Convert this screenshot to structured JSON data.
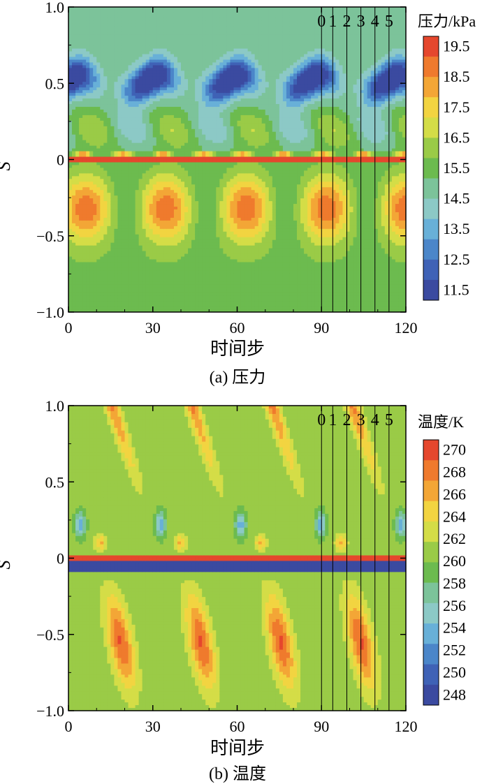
{
  "chart_data": [
    {
      "type": "heatmap",
      "caption": "(a) 压力",
      "xlabel": "时间步",
      "ylabel": "S",
      "xlim": [
        0,
        120
      ],
      "ylim": [
        -1.0,
        1.0
      ],
      "x_ticks": [
        "0",
        "30",
        "60",
        "90",
        "120"
      ],
      "x_tick_values": [
        0,
        30,
        60,
        90,
        120
      ],
      "y_ticks": [
        "1.0",
        "0.5",
        "0",
        "−0.5",
        "−1.0"
      ],
      "y_tick_values": [
        1.0,
        0.5,
        0,
        -0.5,
        -1.0
      ],
      "vertical_lines": [
        {
          "label": "0",
          "x": 90
        },
        {
          "label": "1",
          "x": 94
        },
        {
          "label": "2",
          "x": 99
        },
        {
          "label": "3",
          "x": 104
        },
        {
          "label": "4",
          "x": 109
        },
        {
          "label": "5",
          "x": 114
        }
      ],
      "colorbar": {
        "title": "压力/kPa",
        "levels": [
          "19.5",
          "18.5",
          "17.5",
          "16.5",
          "15.5",
          "14.5",
          "13.5",
          "12.5",
          "11.5"
        ],
        "min": 11.5,
        "max": 19.5,
        "colors": [
          "#3b4aa0",
          "#3f62b6",
          "#4b86c9",
          "#68b0d8",
          "#8cc9c6",
          "#7cc39a",
          "#6cbb4f",
          "#9acb47",
          "#d4dd47",
          "#f2d441",
          "#f3a636",
          "#ef7a2d",
          "#e5472d"
        ]
      },
      "field": {
        "period": 28.5,
        "phase": 0,
        "baseline": 15.3,
        "upper_cell": {
          "center_s": 0.5,
          "amplitude": -4.5
        },
        "lower_cell": {
          "center_s": -0.32,
          "amplitude": 3.3
        },
        "interface": {
          "s": 0,
          "value": 19.5
        }
      }
    },
    {
      "type": "heatmap",
      "caption": "(b) 温度",
      "xlabel": "时间步",
      "ylabel": "S",
      "xlim": [
        0,
        120
      ],
      "ylim": [
        -1.0,
        1.0
      ],
      "x_ticks": [
        "0",
        "30",
        "60",
        "90",
        "120"
      ],
      "x_tick_values": [
        0,
        30,
        60,
        90,
        120
      ],
      "y_ticks": [
        "1.0",
        "0.5",
        "0",
        "−0.5",
        "−1.0"
      ],
      "y_tick_values": [
        1.0,
        0.5,
        0,
        -0.5,
        -1.0
      ],
      "vertical_lines": [
        {
          "label": "0",
          "x": 90
        },
        {
          "label": "1",
          "x": 94
        },
        {
          "label": "2",
          "x": 99
        },
        {
          "label": "3",
          "x": 104
        },
        {
          "label": "4",
          "x": 109
        },
        {
          "label": "5",
          "x": 114
        }
      ],
      "colorbar": {
        "title": "温度/K",
        "levels": [
          "270",
          "268",
          "266",
          "264",
          "262",
          "260",
          "258",
          "256",
          "254",
          "252",
          "250",
          "248"
        ],
        "min": 248,
        "max": 270,
        "colors": [
          "#3b4aa0",
          "#3f62b6",
          "#4b86c9",
          "#68b0d8",
          "#8cc9c6",
          "#7cc39a",
          "#6cbb4f",
          "#9acb47",
          "#d4dd47",
          "#f2d441",
          "#f3a636",
          "#ef7a2d",
          "#e5472d"
        ]
      },
      "field": {
        "period": 28.5,
        "phase": 0,
        "baseline": 260.5,
        "upper_streak": {
          "amplitude": 6
        },
        "lower_cell": {
          "center_s": -0.55,
          "amplitude": 8
        },
        "cold_band": {
          "s": -0.05,
          "value": 247
        },
        "interface": {
          "s": 0,
          "value": 270
        }
      }
    }
  ]
}
